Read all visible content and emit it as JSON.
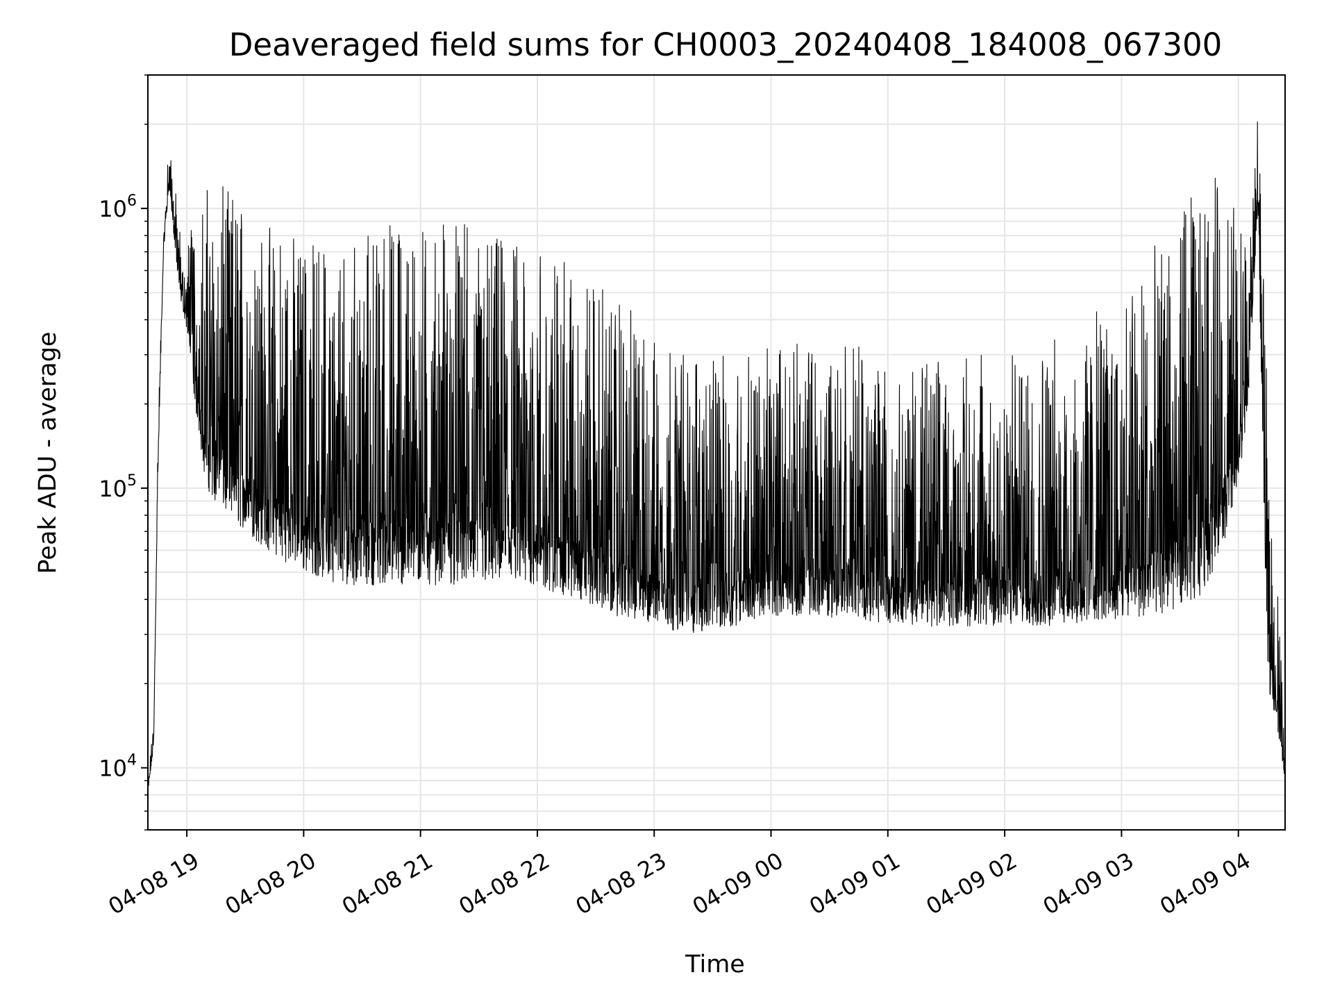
{
  "chart_data": {
    "type": "line",
    "title": "Deaveraged field sums for CH0003_20240408_184008_067300",
    "xlabel": "Time",
    "ylabel": "Peak ADU - average",
    "y_scale": "log",
    "ylim": [
      6000,
      3000000
    ],
    "xlim": [
      "2024-04-08 18:40",
      "2024-04-09 04:24"
    ],
    "grid": true,
    "line_color": "#000000",
    "x_ticks": [
      {
        "t": "2024-04-08 19:00",
        "label": "04-08 19"
      },
      {
        "t": "2024-04-08 20:00",
        "label": "04-08 20"
      },
      {
        "t": "2024-04-08 21:00",
        "label": "04-08 21"
      },
      {
        "t": "2024-04-08 22:00",
        "label": "04-08 22"
      },
      {
        "t": "2024-04-08 23:00",
        "label": "04-08 23"
      },
      {
        "t": "2024-04-09 00:00",
        "label": "04-09 00"
      },
      {
        "t": "2024-04-09 01:00",
        "label": "04-09 01"
      },
      {
        "t": "2024-04-09 02:00",
        "label": "04-09 02"
      },
      {
        "t": "2024-04-09 03:00",
        "label": "04-09 03"
      },
      {
        "t": "2024-04-09 04:00",
        "label": "04-09 04"
      }
    ],
    "y_ticks": [
      {
        "value": 10000,
        "base": "10",
        "exp": "4"
      },
      {
        "value": 100000,
        "base": "10",
        "exp": "5"
      },
      {
        "value": 1000000,
        "base": "10",
        "exp": "6"
      }
    ],
    "series": [
      {
        "x": [
          "2024-04-08 18:40",
          "2024-04-08 18:43",
          "2024-04-08 18:45",
          "2024-04-08 18:48",
          "2024-04-08 18:51",
          "2024-04-08 18:54",
          "2024-04-08 18:56",
          "2024-04-08 18:59",
          "2024-04-08 19:02",
          "2024-04-08 19:04",
          "2024-04-08 19:10",
          "2024-04-08 19:20",
          "2024-04-08 19:30",
          "2024-04-08 19:40",
          "2024-04-08 20:00",
          "2024-04-08 20:20",
          "2024-04-08 20:40",
          "2024-04-08 21:00",
          "2024-04-08 21:20",
          "2024-04-08 21:40",
          "2024-04-08 22:00",
          "2024-04-08 22:20",
          "2024-04-08 22:40",
          "2024-04-08 23:00",
          "2024-04-08 23:20",
          "2024-04-08 23:40",
          "2024-04-09 00:00",
          "2024-04-09 00:20",
          "2024-04-09 00:40",
          "2024-04-09 01:00",
          "2024-04-09 01:20",
          "2024-04-09 01:40",
          "2024-04-09 02:00",
          "2024-04-09 02:20",
          "2024-04-09 02:40",
          "2024-04-09 03:00",
          "2024-04-09 03:20",
          "2024-04-09 03:40",
          "2024-04-09 03:52",
          "2024-04-09 04:00",
          "2024-04-09 04:05",
          "2024-04-09 04:10",
          "2024-04-09 04:15",
          "2024-04-09 04:20",
          "2024-04-09 04:24"
        ],
        "upper": [
          9000,
          15000,
          150000,
          800000,
          1900000,
          1200000,
          900000,
          700000,
          900000,
          1000000,
          1200000,
          1200000,
          1100000,
          900000,
          800000,
          800000,
          900000,
          1000000,
          900000,
          800000,
          750000,
          600000,
          500000,
          350000,
          300000,
          300000,
          320000,
          350000,
          350000,
          300000,
          280000,
          300000,
          300000,
          330000,
          400000,
          500000,
          800000,
          1200000,
          1400000,
          1000000,
          700000,
          2300000,
          200000,
          60000,
          10000
        ],
        "lower": [
          8000,
          12000,
          100000,
          700000,
          1200000,
          700000,
          500000,
          400000,
          300000,
          200000,
          100000,
          80000,
          70000,
          60000,
          50000,
          45000,
          45000,
          45000,
          45000,
          45000,
          44000,
          40000,
          35000,
          32000,
          30000,
          32000,
          35000,
          35000,
          34000,
          33000,
          32000,
          32000,
          32000,
          32000,
          33000,
          34000,
          35000,
          40000,
          60000,
          100000,
          200000,
          1000000,
          20000,
          14000,
          9000
        ]
      }
    ]
  }
}
